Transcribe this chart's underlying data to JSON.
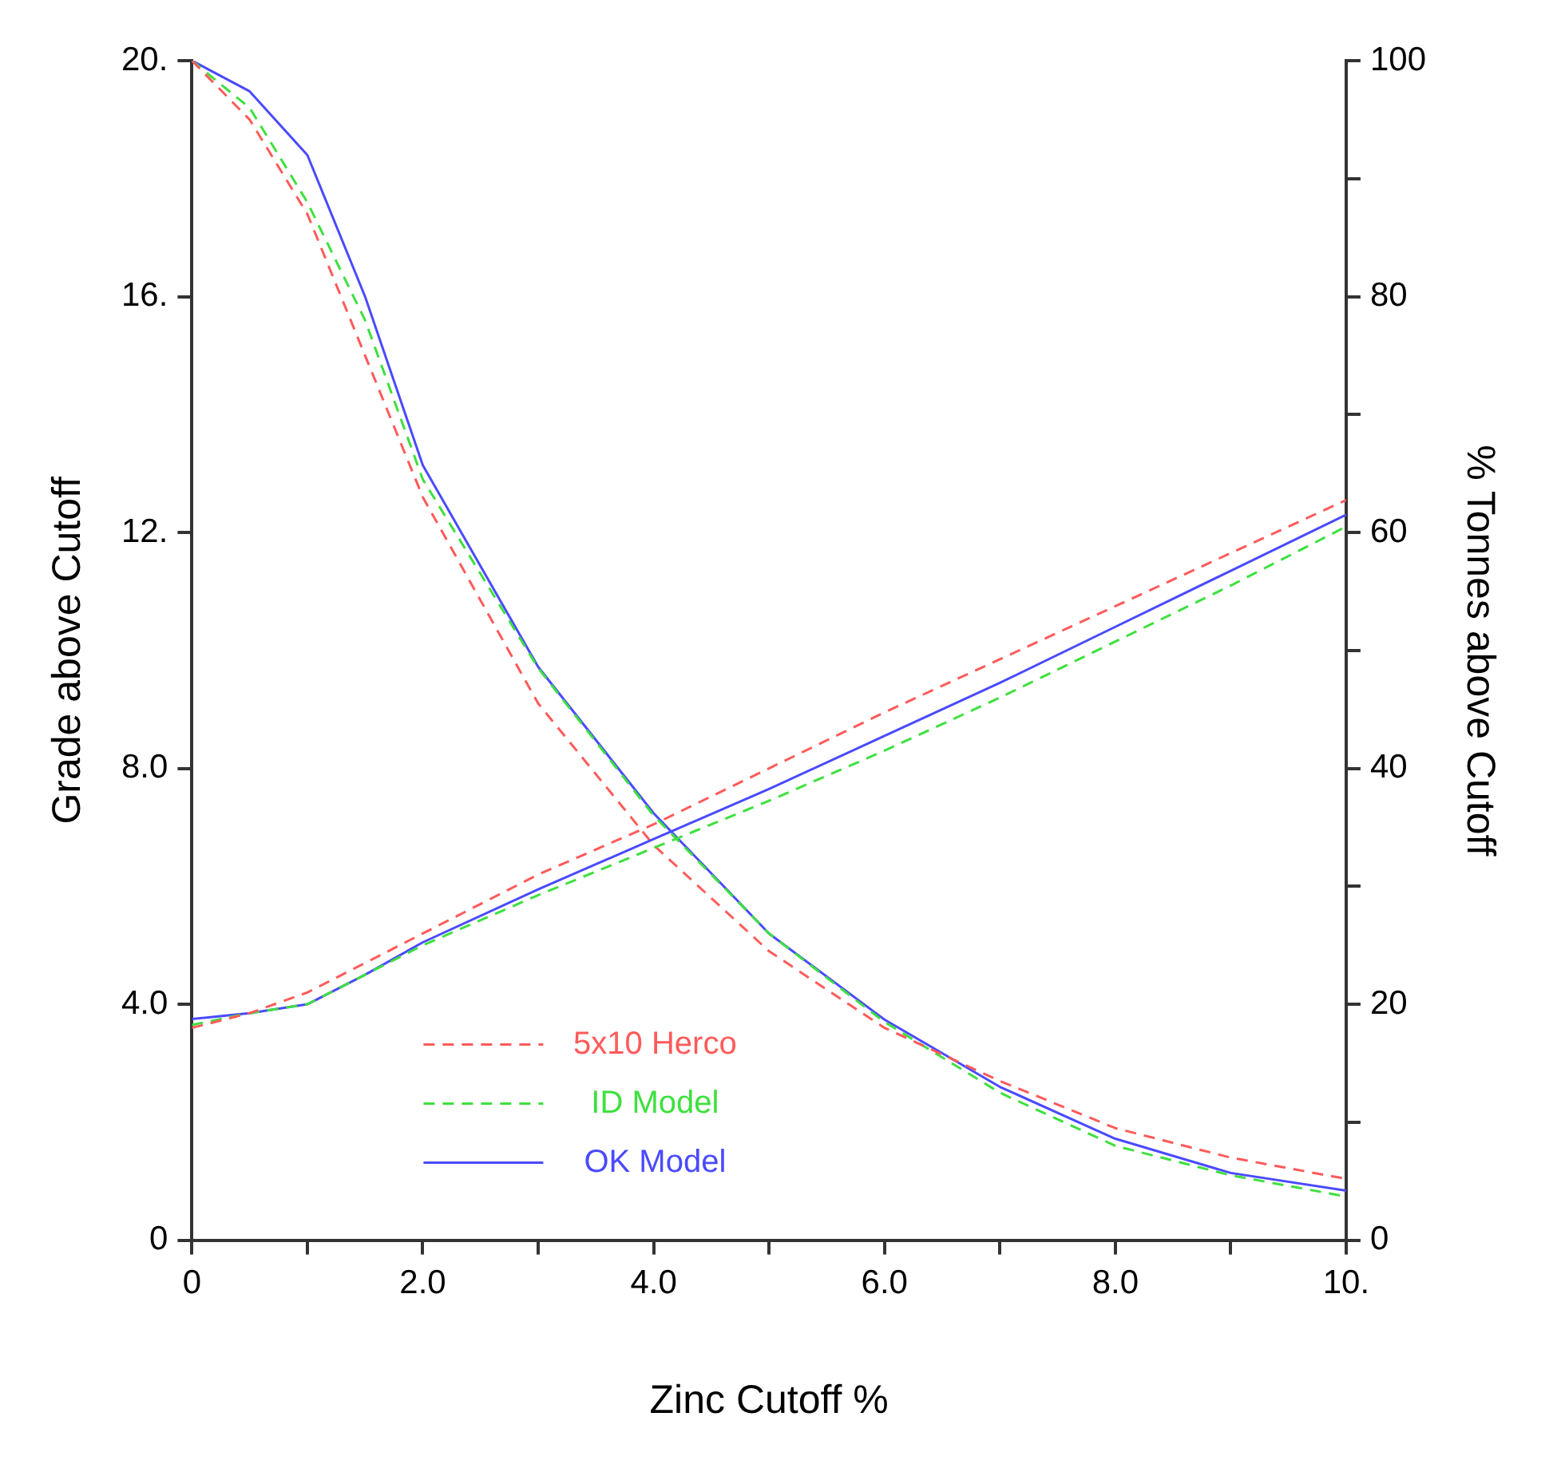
{
  "chart_data": {
    "type": "line",
    "xlabel": "Zinc Cutoff %",
    "ylabel": "Grade above Cutoff",
    "y2label": "% Tonnes above Cutoff",
    "x": [
      0,
      0.5,
      1,
      1.5,
      2,
      3,
      4,
      5,
      6,
      7,
      8,
      9,
      10
    ],
    "series": [
      {
        "name": "5x10 Herco",
        "color": "#ff5a5a",
        "line_style": "dashed",
        "values": [
          3.6,
          3.85,
          4.2,
          4.7,
          5.2,
          6.2,
          7.05,
          8.0,
          8.95,
          9.85,
          10.75,
          11.65,
          12.55
        ]
      },
      {
        "name": "ID Model",
        "color": "#3ee03e",
        "line_style": "dashed",
        "values": [
          3.65,
          3.85,
          4.0,
          4.5,
          5.0,
          5.85,
          6.65,
          7.45,
          8.3,
          9.2,
          10.15,
          11.1,
          12.1
        ]
      },
      {
        "name": "OK Model",
        "color": "#4a4aff",
        "line_style": "solid",
        "values": [
          3.75,
          3.85,
          4.0,
          4.5,
          5.05,
          5.95,
          6.8,
          7.65,
          8.55,
          9.45,
          10.4,
          11.35,
          12.3
        ]
      },
      {
        "color": "#ff5a5a",
        "line_style": "dashed",
        "axis": "y2",
        "values": [
          100,
          95,
          87,
          75,
          63,
          45.5,
          33.5,
          24.5,
          18,
          13.5,
          9.5,
          7,
          5.2
        ]
      },
      {
        "color": "#3ee03e",
        "line_style": "dashed",
        "axis": "y2",
        "values": [
          100,
          96,
          88,
          78,
          64.5,
          48.5,
          36,
          26,
          18.5,
          12.5,
          8,
          5.5,
          3.7
        ]
      },
      {
        "color": "#4a4aff",
        "line_style": "solid",
        "axis": "y2",
        "values": [
          100,
          97.4,
          92,
          80,
          65.7,
          48.6,
          36.2,
          26,
          18.7,
          13,
          8.6,
          5.7,
          4.2
        ]
      }
    ],
    "xlim": [
      0,
      10
    ],
    "xticks": [
      0,
      {
        "value": 1,
        "label": null
      },
      {
        "value": 2,
        "label": "2.0"
      },
      {
        "value": 3,
        "label": null
      },
      {
        "value": 4,
        "label": "4.0"
      },
      {
        "value": 5,
        "label": null
      },
      {
        "value": 6,
        "label": "6.0"
      },
      {
        "value": 7,
        "label": null
      },
      {
        "value": 8,
        "label": "8.0"
      },
      {
        "value": 9,
        "label": null
      },
      {
        "value": 10,
        "label": "10."
      }
    ],
    "ylim": [
      0,
      20
    ],
    "yticks": [
      0,
      {
        "value": 4,
        "label": "4.0"
      },
      {
        "value": 8,
        "label": "8.0"
      },
      {
        "value": 12,
        "label": "12."
      },
      {
        "value": 16,
        "label": "16."
      },
      {
        "value": 20,
        "label": "20."
      }
    ],
    "y2lim": [
      0,
      100
    ],
    "y2ticks": [
      0,
      {
        "value": 10,
        "label": null
      },
      20,
      {
        "value": 30,
        "label": null
      },
      40,
      {
        "value": 50,
        "label": null
      },
      60,
      {
        "value": 70,
        "label": null
      },
      80,
      {
        "value": 90,
        "label": null
      },
      100
    ],
    "grid": false,
    "legend": "bottom left",
    "marker": "none"
  }
}
